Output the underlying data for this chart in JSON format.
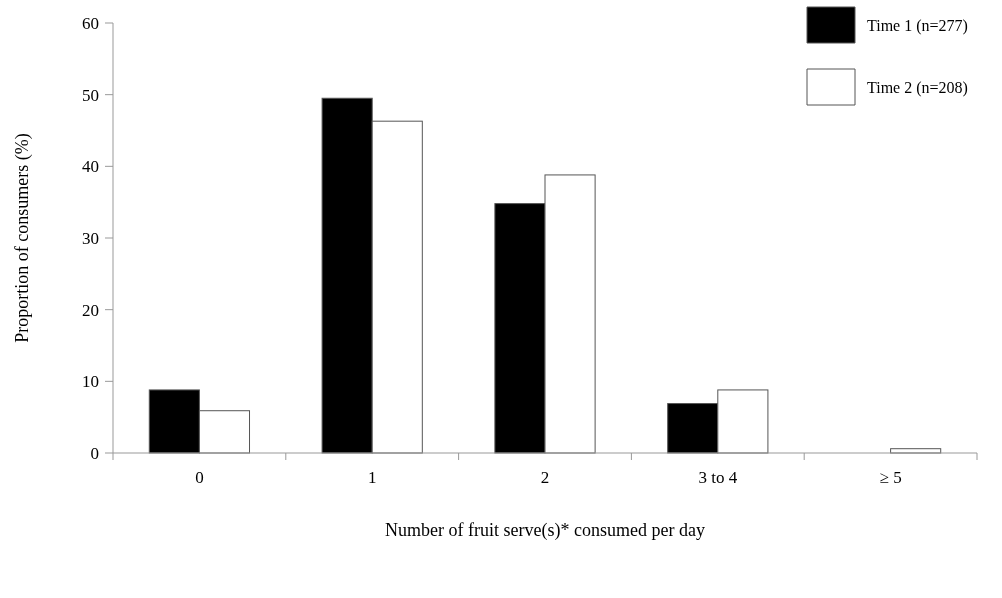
{
  "chart_data": {
    "type": "bar",
    "xlabel": "Number of fruit serve(s)* consumed per day",
    "ylabel": "Proportion of consumers (%)",
    "categories": [
      "0",
      "1",
      "2",
      "3 to 4",
      "≥ 5"
    ],
    "series": [
      {
        "name": "Time 1 (n=277)",
        "color": "#000000",
        "values": [
          8.8,
          49.5,
          34.8,
          6.9,
          0
        ]
      },
      {
        "name": "Time 2 (n=208)",
        "color": "#ffffff",
        "values": [
          5.9,
          46.3,
          38.8,
          8.8,
          0.6
        ]
      }
    ],
    "ylim": [
      0,
      60
    ],
    "yticks": [
      0,
      10,
      20,
      30,
      40,
      50,
      60
    ],
    "legend": "top right"
  }
}
